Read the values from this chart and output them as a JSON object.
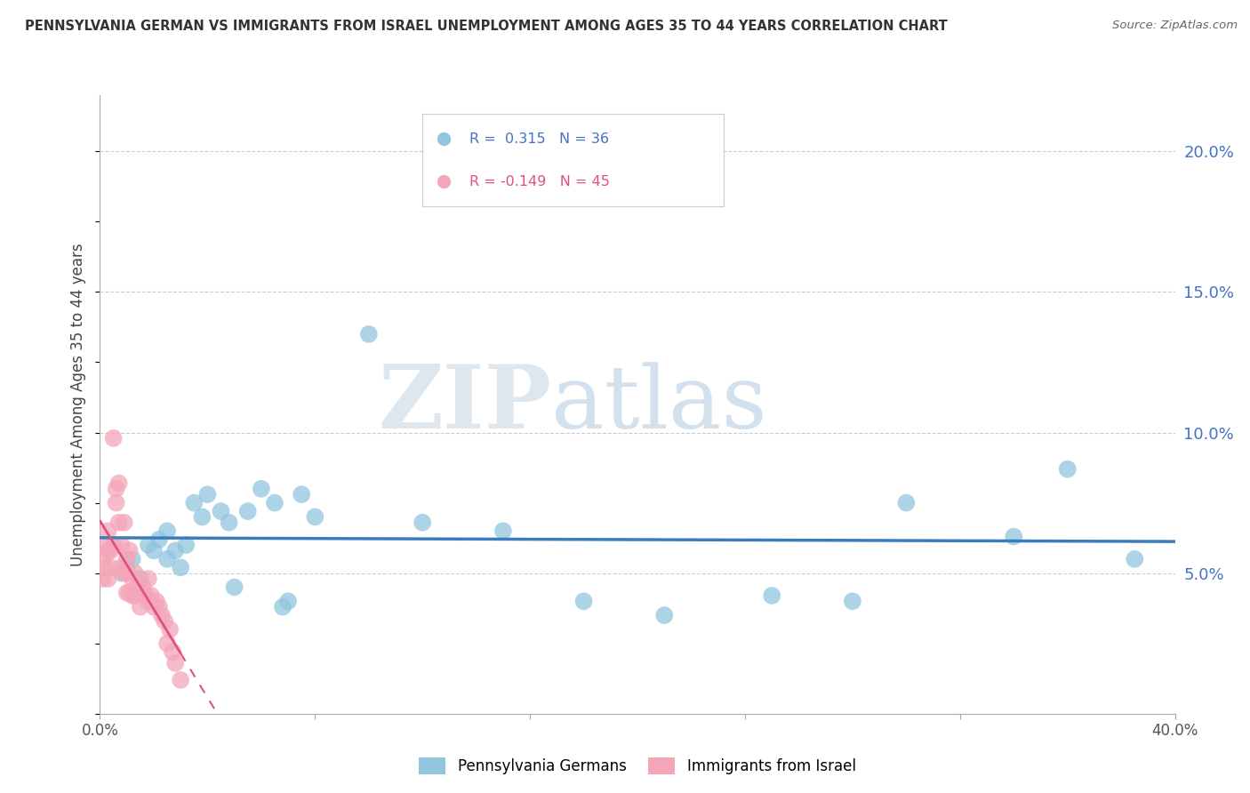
{
  "title": "PENNSYLVANIA GERMAN VS IMMIGRANTS FROM ISRAEL UNEMPLOYMENT AMONG AGES 35 TO 44 YEARS CORRELATION CHART",
  "source": "Source: ZipAtlas.com",
  "ylabel": "Unemployment Among Ages 35 to 44 years",
  "xlim": [
    0.0,
    0.4
  ],
  "ylim": [
    0.0,
    0.22
  ],
  "yticks": [
    0.05,
    0.1,
    0.15,
    0.2
  ],
  "ytick_labels": [
    "5.0%",
    "10.0%",
    "15.0%",
    "20.0%"
  ],
  "blue_R": 0.315,
  "blue_N": 36,
  "pink_R": -0.149,
  "pink_N": 45,
  "blue_color": "#92c5de",
  "pink_color": "#f4a6b8",
  "line_blue": "#3a7dbf",
  "line_pink": "#e05080",
  "axis_label_color": "#4472c4",
  "legend_label_blue": "Pennsylvania Germans",
  "legend_label_pink": "Immigrants from Israel",
  "watermark_zip": "ZIP",
  "watermark_atlas": "atlas",
  "blue_scatter_x": [
    0.008,
    0.01,
    0.012,
    0.015,
    0.018,
    0.02,
    0.022,
    0.025,
    0.025,
    0.028,
    0.03,
    0.032,
    0.035,
    0.038,
    0.04,
    0.045,
    0.048,
    0.05,
    0.055,
    0.06,
    0.065,
    0.068,
    0.07,
    0.075,
    0.08,
    0.1,
    0.12,
    0.15,
    0.18,
    0.21,
    0.25,
    0.28,
    0.3,
    0.34,
    0.36,
    0.385
  ],
  "blue_scatter_y": [
    0.05,
    0.052,
    0.055,
    0.048,
    0.06,
    0.058,
    0.062,
    0.055,
    0.065,
    0.058,
    0.052,
    0.06,
    0.075,
    0.07,
    0.078,
    0.072,
    0.068,
    0.045,
    0.072,
    0.08,
    0.075,
    0.038,
    0.04,
    0.078,
    0.07,
    0.135,
    0.068,
    0.065,
    0.04,
    0.035,
    0.042,
    0.04,
    0.075,
    0.063,
    0.087,
    0.055
  ],
  "pink_scatter_x": [
    0.001,
    0.001,
    0.002,
    0.002,
    0.003,
    0.003,
    0.003,
    0.004,
    0.004,
    0.005,
    0.005,
    0.006,
    0.006,
    0.007,
    0.007,
    0.008,
    0.008,
    0.009,
    0.009,
    0.01,
    0.01,
    0.01,
    0.011,
    0.011,
    0.012,
    0.012,
    0.013,
    0.013,
    0.014,
    0.015,
    0.016,
    0.017,
    0.018,
    0.018,
    0.019,
    0.02,
    0.021,
    0.022,
    0.023,
    0.024,
    0.025,
    0.026,
    0.027,
    0.028,
    0.03
  ],
  "pink_scatter_y": [
    0.055,
    0.048,
    0.06,
    0.052,
    0.058,
    0.048,
    0.065,
    0.052,
    0.058,
    0.098,
    0.06,
    0.075,
    0.08,
    0.082,
    0.068,
    0.06,
    0.052,
    0.05,
    0.068,
    0.055,
    0.05,
    0.043,
    0.058,
    0.043,
    0.048,
    0.042,
    0.05,
    0.042,
    0.045,
    0.038,
    0.045,
    0.042,
    0.04,
    0.048,
    0.042,
    0.038,
    0.04,
    0.038,
    0.035,
    0.033,
    0.025,
    0.03,
    0.022,
    0.018,
    0.012
  ]
}
